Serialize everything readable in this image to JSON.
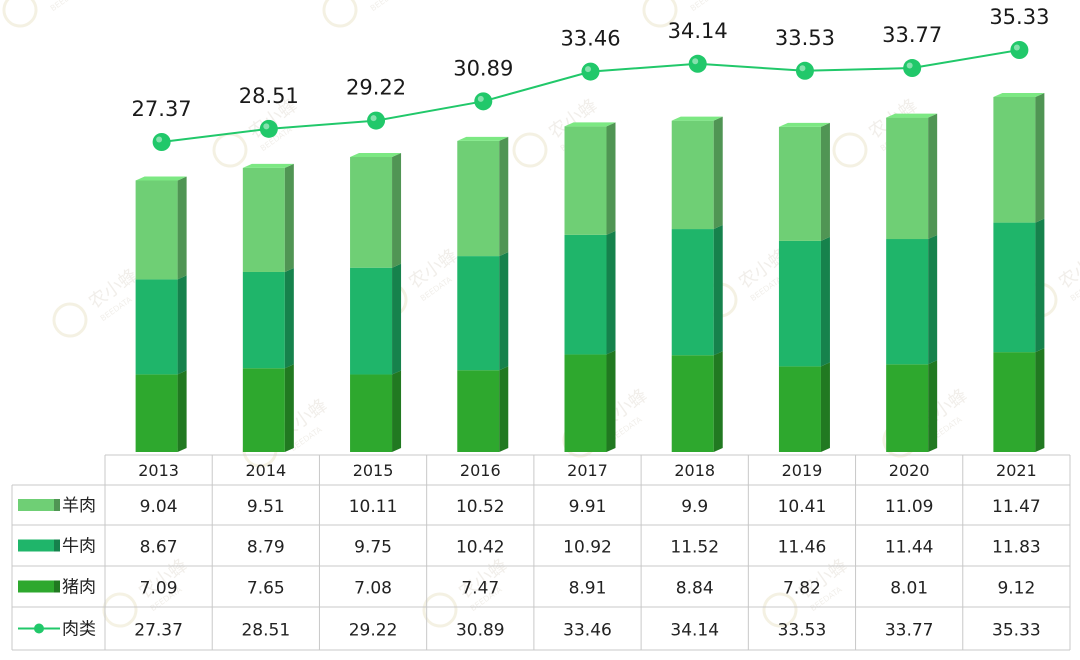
{
  "chart_data": {
    "type": "bar",
    "stacked": true,
    "categories": [
      "2013",
      "2014",
      "2015",
      "2016",
      "2017",
      "2018",
      "2019",
      "2020",
      "2021"
    ],
    "series": [
      {
        "name": "羊肉",
        "kind": "bar",
        "color": "#6fcf75",
        "values": [
          9.04,
          9.51,
          10.11,
          10.52,
          9.91,
          9.9,
          10.41,
          11.09,
          11.47
        ]
      },
      {
        "name": "牛肉",
        "kind": "bar",
        "color": "#1fb56a",
        "values": [
          8.67,
          8.79,
          9.75,
          10.42,
          10.92,
          11.52,
          11.46,
          11.44,
          11.83
        ]
      },
      {
        "name": "猪肉",
        "kind": "bar",
        "color": "#2ea82e",
        "values": [
          7.09,
          7.65,
          7.08,
          7.47,
          8.91,
          8.84,
          7.82,
          8.01,
          9.12
        ]
      },
      {
        "name": "肉类",
        "kind": "line",
        "color": "#21c86a",
        "values": [
          27.37,
          28.51,
          29.22,
          30.89,
          33.46,
          34.14,
          33.53,
          33.77,
          35.33
        ]
      }
    ],
    "ylim": [
      0,
      36
    ],
    "line_ylim": [
      20,
      36
    ],
    "data_table": true,
    "legend": "left of data table",
    "watermark": {
      "text": "农小蜂",
      "subtext": "BEEDATA"
    }
  }
}
